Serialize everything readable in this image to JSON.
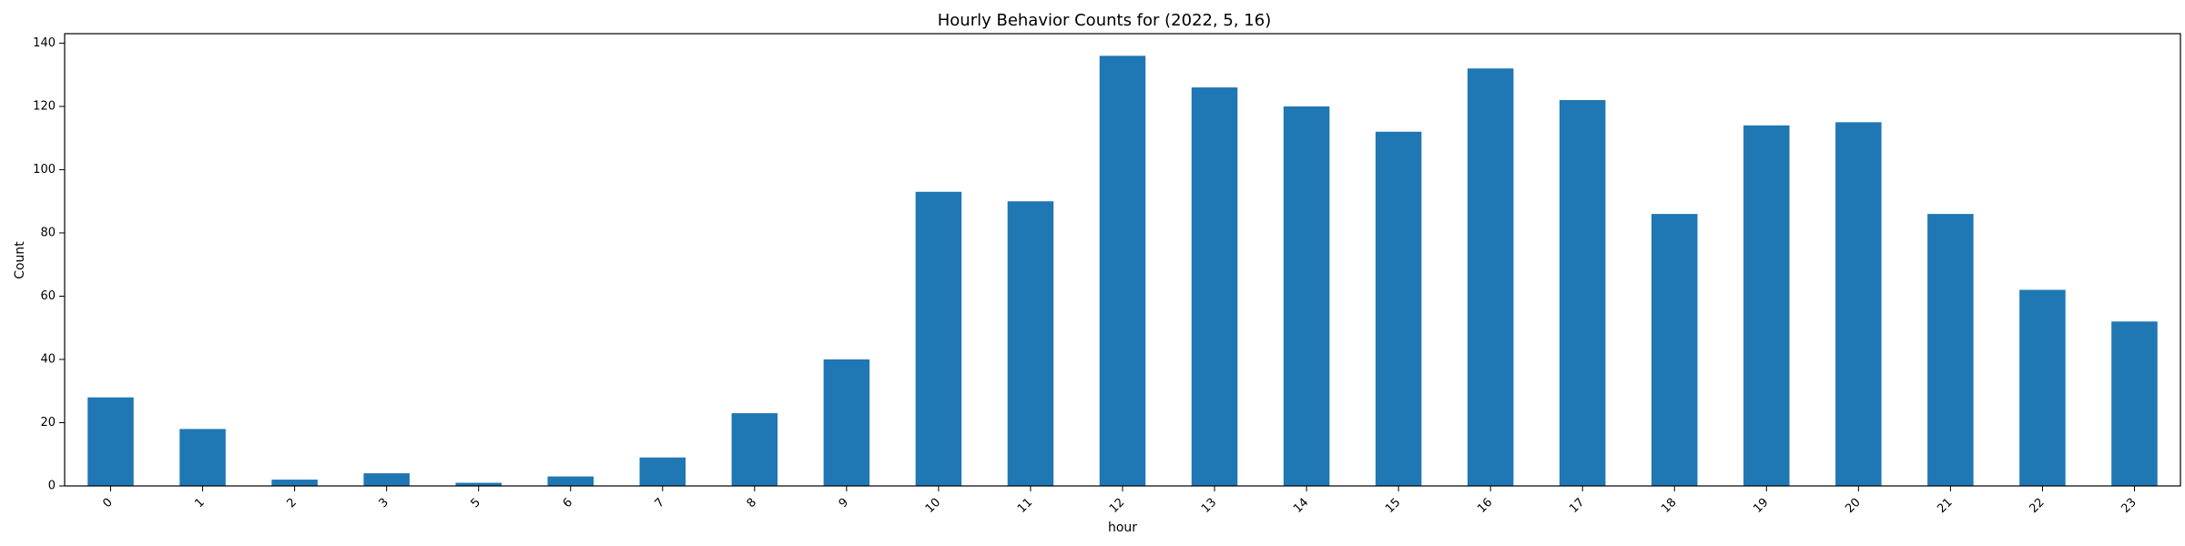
{
  "chart_data": {
    "type": "bar",
    "title": "Hourly Behavior Counts for (2022, 5, 16)",
    "xlabel": "hour",
    "ylabel": "Count",
    "categories": [
      "0",
      "1",
      "2",
      "3",
      "5",
      "6",
      "7",
      "8",
      "9",
      "10",
      "11",
      "12",
      "13",
      "14",
      "15",
      "16",
      "17",
      "18",
      "19",
      "20",
      "21",
      "22",
      "23"
    ],
    "values": [
      28,
      18,
      2,
      4,
      1,
      3,
      9,
      23,
      40,
      93,
      90,
      136,
      126,
      120,
      112,
      132,
      122,
      86,
      114,
      115,
      86,
      62,
      52
    ],
    "ylim": [
      0,
      143
    ],
    "yticks": [
      0,
      20,
      40,
      60,
      80,
      100,
      120,
      140
    ],
    "bar_color": "#1f77b4",
    "grid": false,
    "legend": "none"
  }
}
